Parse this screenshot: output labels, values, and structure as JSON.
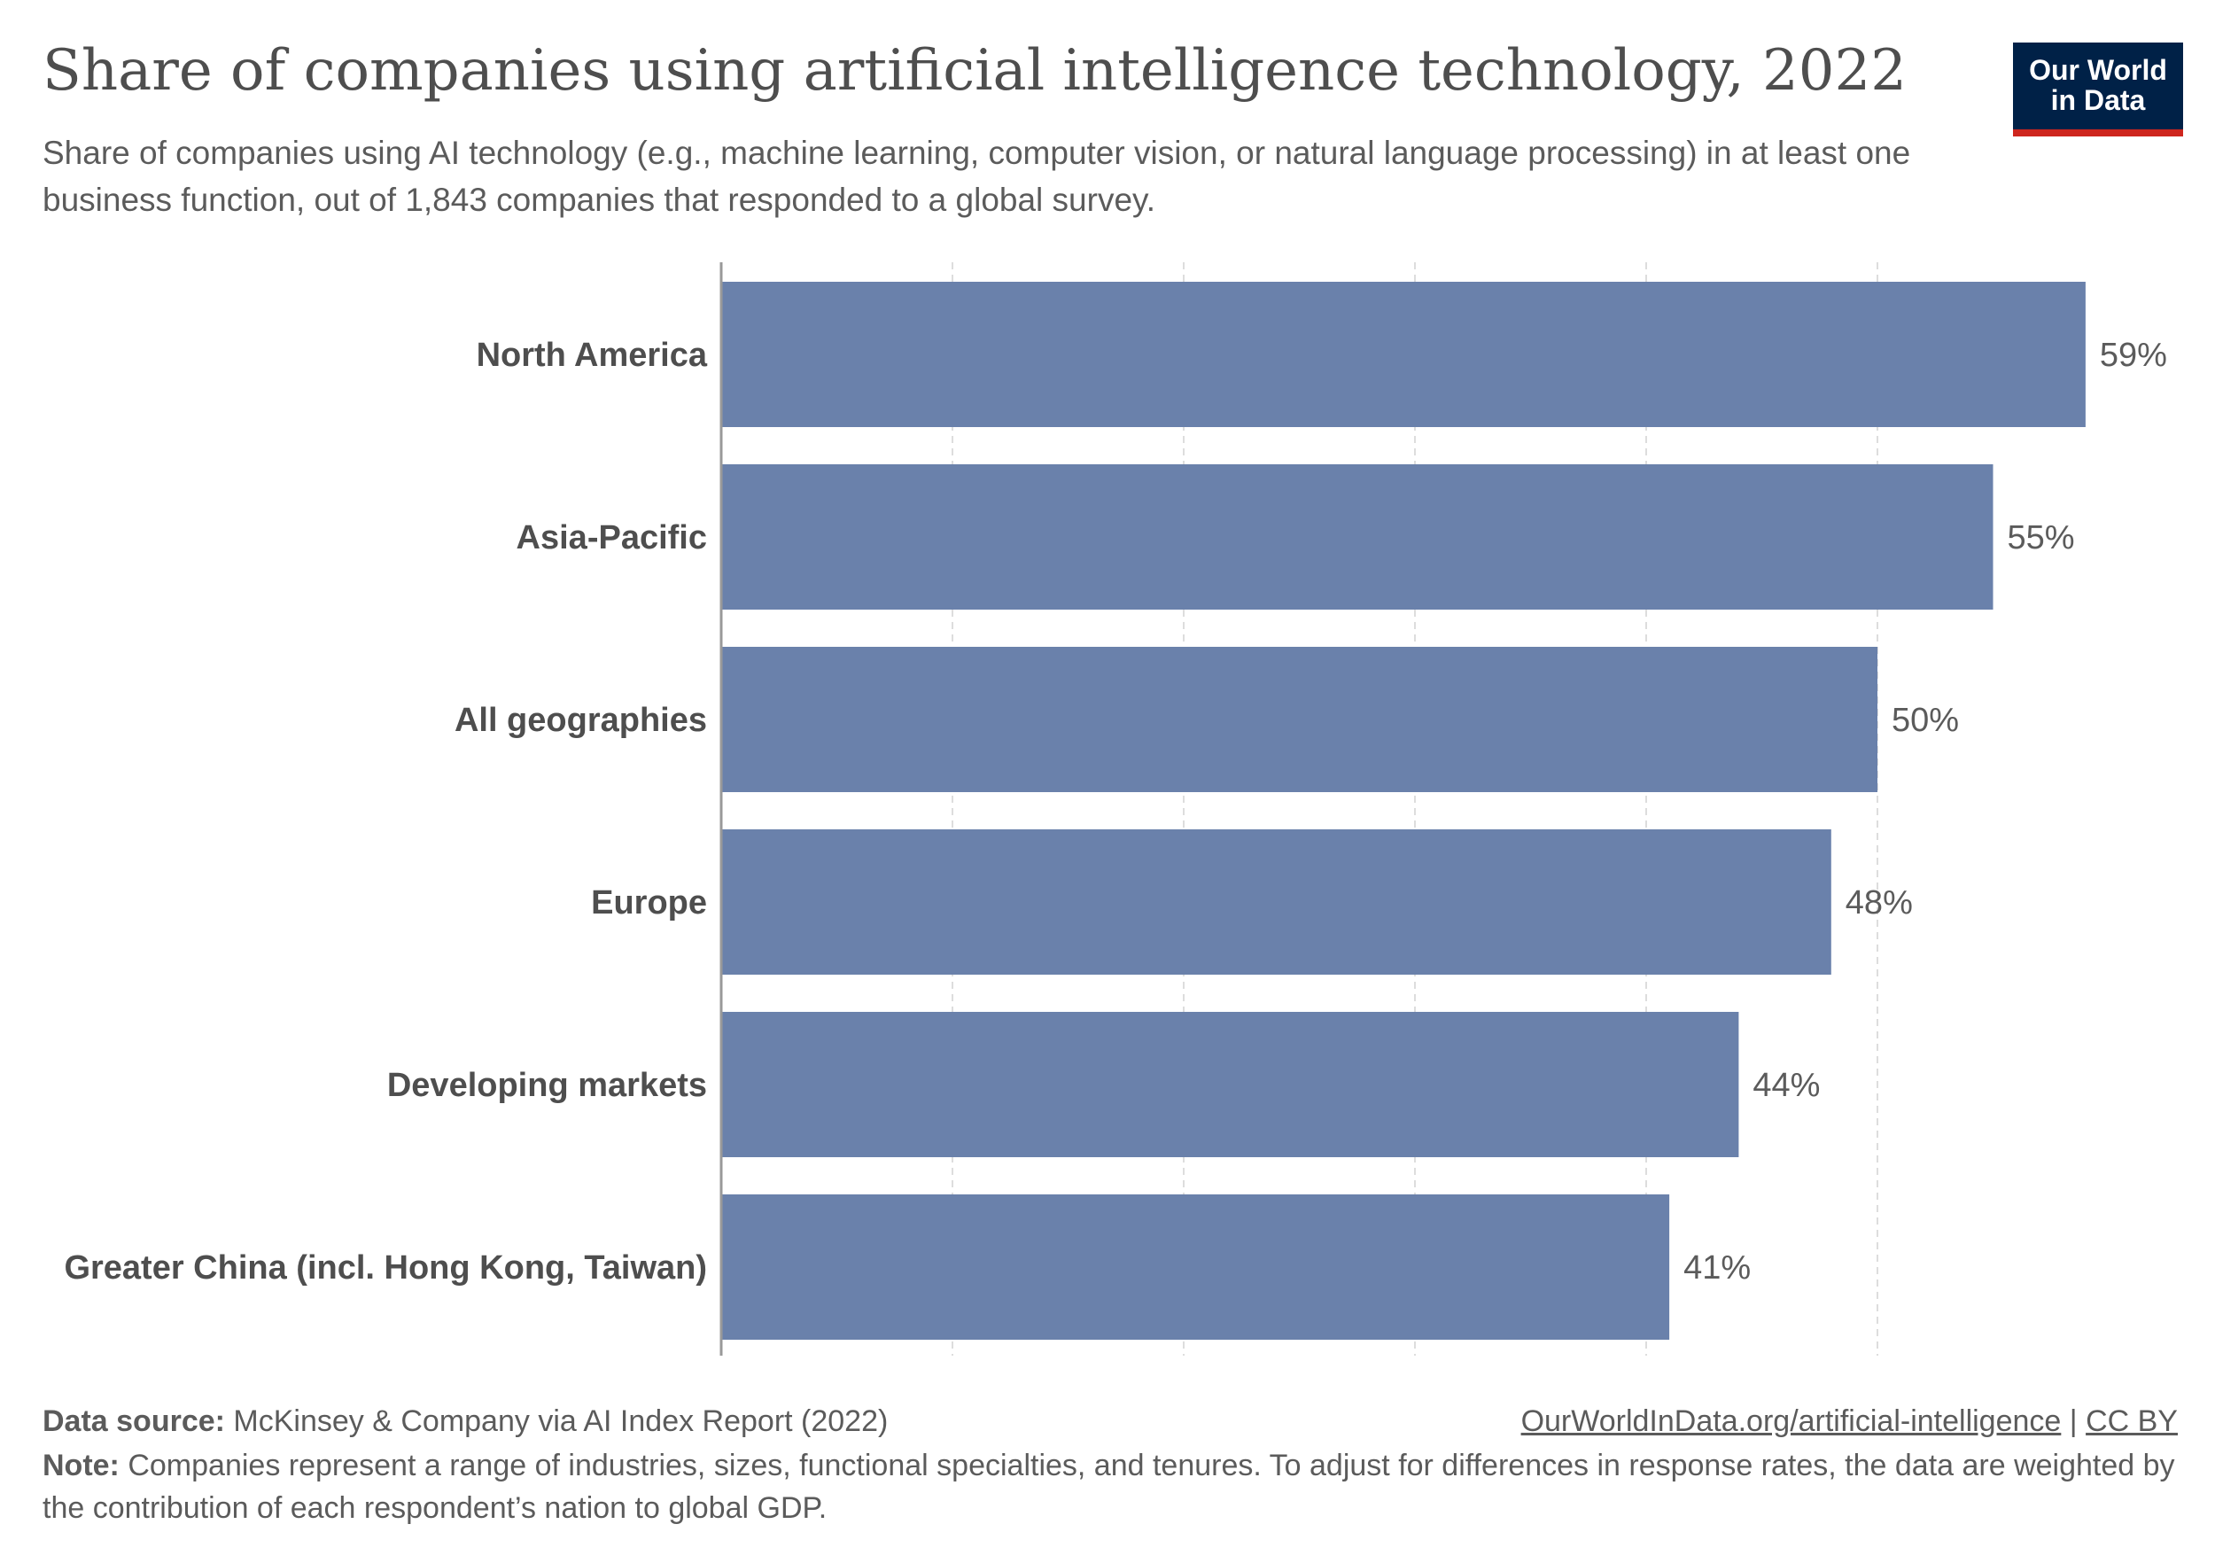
{
  "title": "Share of companies using artificial intelligence technology, 2022",
  "subtitle": "Share of companies using AI technology (e.g., machine learning, computer vision, or natural language processing) in at least one business function, out of 1,843 companies that responded to a global survey.",
  "logo": {
    "line1": "Our World",
    "line2": "in Data"
  },
  "colors": {
    "bar": "#6a81ab",
    "grid": "#dddddd",
    "axis": "#999999",
    "label": "#4e4e4e",
    "value": "#5b5b5b"
  },
  "chart_data": {
    "type": "bar",
    "orientation": "horizontal",
    "categories": [
      "North America",
      "Asia-Pacific",
      "All geographies",
      "Europe",
      "Developing markets",
      "Greater China (incl. Hong Kong, Taiwan)"
    ],
    "values": [
      59,
      55,
      50,
      48,
      44,
      41
    ],
    "value_labels": [
      "59%",
      "55%",
      "50%",
      "48%",
      "44%",
      "41%"
    ],
    "unit": "%",
    "xlim": [
      0,
      60
    ],
    "gridlines": [
      10,
      20,
      30,
      40,
      50
    ],
    "grid": true
  },
  "footer": {
    "source_label": "Data source:",
    "source_text": "McKinsey & Company via AI Index Report (2022)",
    "link": "OurWorldInData.org/artificial-intelligence",
    "separator": "|",
    "license": "CC BY",
    "note_label": "Note:",
    "note_text": "Companies represent a range of industries, sizes, functional specialties, and tenures. To adjust for differences in response rates, the data are weighted by the contribution of each respondent’s nation to global GDP."
  }
}
